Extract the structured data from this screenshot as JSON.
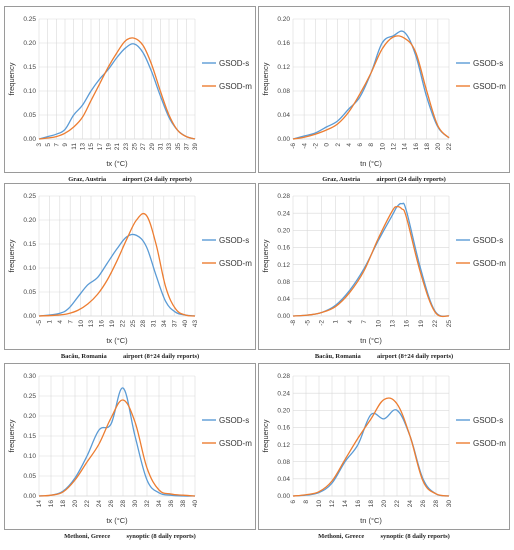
{
  "colors": {
    "GSOD-s": "#5b9bd5",
    "GSOD-m": "#ed7d31",
    "grid": "#d9d9d9",
    "frame": "#9a9a9a"
  },
  "chart_data": [
    {
      "type": "line",
      "caption": "Graz, Austria          airport (24 daily reports)",
      "xlabel": "tx (°C)",
      "ylabel": "frequency",
      "x_ticks": [
        "3",
        "5",
        "7",
        "9",
        "11",
        "13",
        "15",
        "17",
        "19",
        "21",
        "23",
        "25",
        "27",
        "29",
        "31",
        "33",
        "35",
        "37",
        "39"
      ],
      "y_ticks": [
        "0.00",
        "0.05",
        "0.10",
        "0.15",
        "0.20",
        "0.25"
      ],
      "xlim": [
        3,
        39
      ],
      "ylim": [
        0,
        0.25
      ],
      "legend": "right",
      "series": [
        {
          "name": "GSOD-s",
          "x": [
            3,
            5,
            7,
            9,
            11,
            13,
            15,
            17,
            19,
            21,
            23,
            25,
            27,
            29,
            31,
            33,
            35,
            37,
            39
          ],
          "y": [
            0.0,
            0.005,
            0.01,
            0.02,
            0.05,
            0.07,
            0.1,
            0.125,
            0.145,
            0.17,
            0.19,
            0.198,
            0.18,
            0.14,
            0.09,
            0.045,
            0.018,
            0.005,
            0.0
          ]
        },
        {
          "name": "GSOD-m",
          "x": [
            3,
            5,
            7,
            9,
            11,
            13,
            15,
            17,
            19,
            21,
            23,
            25,
            27,
            29,
            31,
            33,
            35,
            37,
            39
          ],
          "y": [
            0.0,
            0.002,
            0.005,
            0.012,
            0.025,
            0.045,
            0.08,
            0.115,
            0.15,
            0.18,
            0.205,
            0.21,
            0.195,
            0.155,
            0.1,
            0.05,
            0.018,
            0.005,
            0.0
          ]
        }
      ]
    },
    {
      "type": "line",
      "caption": "Graz, Austria          airport (24 daily reports)",
      "xlabel": "tn (°C)",
      "ylabel": "frequency",
      "x_ticks": [
        "-6",
        "-4",
        "-2",
        "0",
        "2",
        "4",
        "6",
        "8",
        "10",
        "12",
        "14",
        "16",
        "18",
        "20",
        "22"
      ],
      "y_ticks": [
        "0.00",
        "0.04",
        "0.08",
        "0.12",
        "0.16",
        "0.20"
      ],
      "xlim": [
        -6,
        22
      ],
      "ylim": [
        0,
        0.2
      ],
      "legend": "right",
      "series": [
        {
          "name": "GSOD-s",
          "x": [
            -6,
            -4,
            -2,
            0,
            2,
            4,
            6,
            8,
            10,
            12,
            14,
            16,
            18,
            20,
            22
          ],
          "y": [
            0.0,
            0.005,
            0.01,
            0.02,
            0.03,
            0.05,
            0.07,
            0.11,
            0.16,
            0.172,
            0.178,
            0.14,
            0.07,
            0.02,
            0.002
          ]
        },
        {
          "name": "GSOD-m",
          "x": [
            -6,
            -4,
            -2,
            0,
            2,
            4,
            6,
            8,
            10,
            12,
            14,
            16,
            18,
            20,
            22
          ],
          "y": [
            0.0,
            0.003,
            0.008,
            0.015,
            0.025,
            0.045,
            0.075,
            0.11,
            0.15,
            0.17,
            0.168,
            0.145,
            0.08,
            0.022,
            0.002
          ]
        }
      ]
    },
    {
      "type": "line",
      "caption": "Bacău, Romania          airport (8÷24 daily reports)",
      "xlabel": "tx (°C)",
      "ylabel": "frequency",
      "x_ticks": [
        "-5",
        "1",
        "4",
        "7",
        "10",
        "13",
        "16",
        "19",
        "22",
        "25",
        "28",
        "31",
        "34",
        "37",
        "40",
        "43"
      ],
      "y_ticks": [
        "0.00",
        "0.05",
        "0.10",
        "0.15",
        "0.20",
        "0.25"
      ],
      "xlim": [
        -5,
        43
      ],
      "ylim": [
        0,
        0.25
      ],
      "legend": "right",
      "series": [
        {
          "name": "GSOD-s",
          "x": [
            -5,
            1,
            4,
            7,
            10,
            13,
            16,
            19,
            22,
            25,
            28,
            31,
            34,
            37,
            40,
            43
          ],
          "y": [
            0.0,
            0.005,
            0.015,
            0.04,
            0.065,
            0.08,
            0.11,
            0.14,
            0.165,
            0.168,
            0.145,
            0.085,
            0.03,
            0.008,
            0.002,
            0.0
          ]
        },
        {
          "name": "GSOD-m",
          "x": [
            -5,
            1,
            4,
            7,
            10,
            13,
            16,
            19,
            22,
            25,
            28,
            31,
            34,
            37,
            40,
            43
          ],
          "y": [
            0.0,
            0.002,
            0.005,
            0.012,
            0.025,
            0.045,
            0.075,
            0.115,
            0.16,
            0.2,
            0.21,
            0.15,
            0.06,
            0.015,
            0.002,
            0.0
          ]
        }
      ]
    },
    {
      "type": "line",
      "caption": "Bacău, Romania          airport (8÷24 daily reports)",
      "xlabel": "tn (°C)",
      "ylabel": "frequency",
      "x_ticks": [
        "-8",
        "-5",
        "-2",
        "1",
        "4",
        "7",
        "10",
        "13",
        "16",
        "19",
        "22",
        "25"
      ],
      "y_ticks": [
        "0.00",
        "0.04",
        "0.08",
        "0.12",
        "0.16",
        "0.20",
        "0.24",
        "0.28"
      ],
      "xlim": [
        -8,
        25
      ],
      "ylim": [
        0,
        0.28
      ],
      "legend": "right",
      "series": [
        {
          "name": "GSOD-s",
          "x": [
            -8,
            -5,
            -2,
            1,
            4,
            7,
            10,
            13,
            14,
            15,
            16,
            19,
            22,
            25
          ],
          "y": [
            0.0,
            0.002,
            0.008,
            0.025,
            0.06,
            0.11,
            0.175,
            0.235,
            0.255,
            0.262,
            0.245,
            0.11,
            0.012,
            0.0
          ]
        },
        {
          "name": "GSOD-m",
          "x": [
            -8,
            -5,
            -2,
            1,
            4,
            7,
            10,
            13,
            14,
            15,
            16,
            19,
            22,
            25
          ],
          "y": [
            0.0,
            0.002,
            0.008,
            0.022,
            0.055,
            0.105,
            0.18,
            0.245,
            0.255,
            0.25,
            0.23,
            0.1,
            0.01,
            0.0
          ]
        }
      ]
    },
    {
      "type": "line",
      "caption": "Methoni, Greece          synoptic (8 daily reports)",
      "xlabel": "tx (°C)",
      "ylabel": "frequency",
      "x_ticks": [
        "14",
        "16",
        "18",
        "20",
        "22",
        "24",
        "26",
        "28",
        "30",
        "32",
        "34",
        "36",
        "38",
        "40"
      ],
      "y_ticks": [
        "0.00",
        "0.05",
        "0.10",
        "0.15",
        "0.20",
        "0.25",
        "0.30"
      ],
      "xlim": [
        14,
        40
      ],
      "ylim": [
        0,
        0.3
      ],
      "legend": "right",
      "series": [
        {
          "name": "GSOD-s",
          "x": [
            14,
            16,
            18,
            20,
            22,
            24,
            26,
            28,
            30,
            32,
            34,
            36,
            38,
            40
          ],
          "y": [
            0.0,
            0.002,
            0.012,
            0.045,
            0.1,
            0.165,
            0.18,
            0.27,
            0.15,
            0.04,
            0.008,
            0.002,
            0.0,
            0.0
          ]
        },
        {
          "name": "GSOD-m",
          "x": [
            14,
            16,
            18,
            20,
            22,
            24,
            26,
            28,
            30,
            32,
            34,
            36,
            38,
            40
          ],
          "y": [
            0.0,
            0.002,
            0.01,
            0.04,
            0.085,
            0.13,
            0.195,
            0.24,
            0.185,
            0.07,
            0.015,
            0.005,
            0.002,
            0.0
          ]
        }
      ]
    },
    {
      "type": "line",
      "caption": "Methoni, Greece          synoptic (8 daily reports)",
      "xlabel": "tn (°C)",
      "ylabel": "frequency",
      "x_ticks": [
        "6",
        "8",
        "10",
        "12",
        "14",
        "16",
        "18",
        "20",
        "22",
        "24",
        "26",
        "28",
        "30"
      ],
      "y_ticks": [
        "0.00",
        "0.04",
        "0.08",
        "0.12",
        "0.16",
        "0.20",
        "0.24",
        "0.28"
      ],
      "xlim": [
        6,
        30
      ],
      "ylim": [
        0,
        0.28
      ],
      "legend": "right",
      "series": [
        {
          "name": "GSOD-s",
          "x": [
            6,
            8,
            10,
            12,
            14,
            16,
            18,
            20,
            22,
            24,
            26,
            28,
            30
          ],
          "y": [
            0.0,
            0.002,
            0.008,
            0.03,
            0.08,
            0.12,
            0.19,
            0.18,
            0.2,
            0.14,
            0.04,
            0.005,
            0.0
          ]
        },
        {
          "name": "GSOD-m",
          "x": [
            6,
            8,
            10,
            12,
            14,
            16,
            18,
            20,
            22,
            24,
            26,
            28,
            30
          ],
          "y": [
            0.0,
            0.003,
            0.01,
            0.035,
            0.085,
            0.135,
            0.18,
            0.225,
            0.215,
            0.14,
            0.035,
            0.005,
            0.0
          ]
        }
      ]
    }
  ]
}
